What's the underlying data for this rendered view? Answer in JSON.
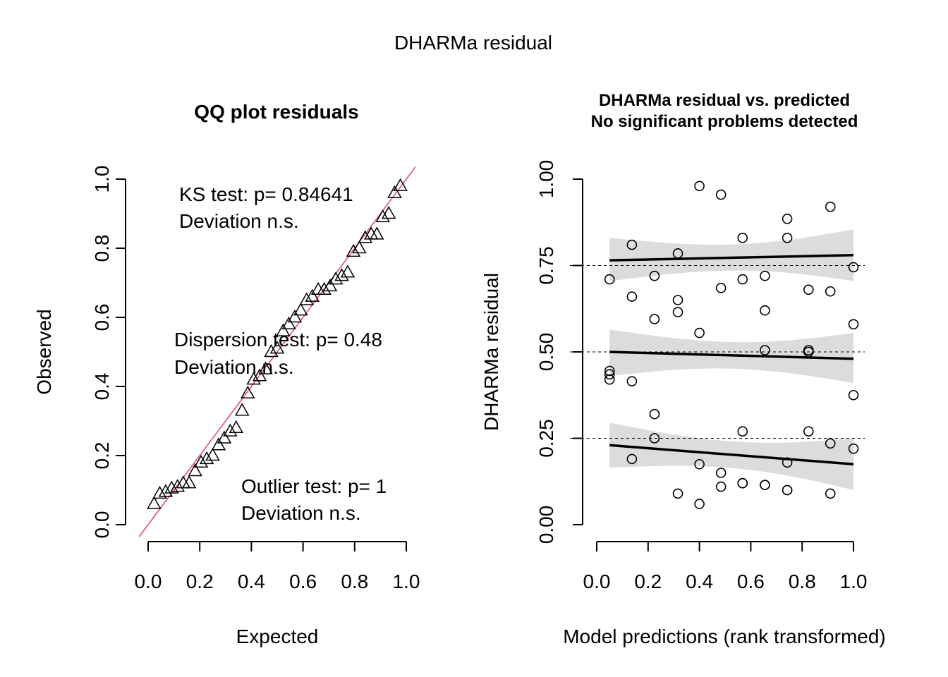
{
  "figure": {
    "title": "DHARMa residual"
  },
  "qq": {
    "title": "QQ plot residuals",
    "xlabel": "Expected",
    "ylabel": "Observed",
    "x_ticks": [
      "0.0",
      "0.2",
      "0.4",
      "0.6",
      "0.8",
      "1.0"
    ],
    "y_ticks": [
      "0.0",
      "0.2",
      "0.4",
      "0.6",
      "0.8",
      "1.0"
    ],
    "ks_line1": "KS test: p= 0.84641",
    "ks_line2": "Deviation  n.s.",
    "disp_line1": "Dispersion test: p= 0.48",
    "disp_line2": "Deviation  n.s.",
    "outlier_line1": "Outlier test: p= 1",
    "outlier_line2": "Deviation  n.s."
  },
  "resid": {
    "title_line1": "DHARMa residual vs. predicted",
    "title_line2": "No significant problems detected",
    "xlabel": "Model predictions (rank transformed)",
    "ylabel": "DHARMa residual",
    "x_ticks": [
      "0.0",
      "0.2",
      "0.4",
      "0.6",
      "0.8",
      "1.0"
    ],
    "y_ticks": [
      "0.00",
      "0.25",
      "0.50",
      "0.75",
      "1.00"
    ]
  },
  "chart_data": [
    {
      "type": "scatter",
      "title": "QQ plot residuals",
      "xlabel": "Expected",
      "ylabel": "Observed",
      "xlim": [
        0,
        1
      ],
      "ylim": [
        0,
        1
      ],
      "marker": "triangle",
      "reference_line": {
        "slope": 1,
        "intercept": 0,
        "color": "#DF536B"
      },
      "x": [
        0.023,
        0.045,
        0.068,
        0.091,
        0.114,
        0.136,
        0.159,
        0.182,
        0.205,
        0.227,
        0.25,
        0.273,
        0.295,
        0.318,
        0.341,
        0.364,
        0.386,
        0.409,
        0.432,
        0.455,
        0.477,
        0.5,
        0.523,
        0.545,
        0.568,
        0.591,
        0.614,
        0.636,
        0.659,
        0.682,
        0.705,
        0.727,
        0.75,
        0.773,
        0.795,
        0.818,
        0.841,
        0.864,
        0.886,
        0.909,
        0.932,
        0.955,
        0.977
      ],
      "y": [
        0.06,
        0.09,
        0.095,
        0.105,
        0.11,
        0.12,
        0.12,
        0.155,
        0.18,
        0.19,
        0.2,
        0.23,
        0.25,
        0.27,
        0.28,
        0.33,
        0.38,
        0.42,
        0.43,
        0.45,
        0.5,
        0.51,
        0.56,
        0.58,
        0.6,
        0.62,
        0.65,
        0.66,
        0.68,
        0.68,
        0.69,
        0.71,
        0.72,
        0.73,
        0.79,
        0.8,
        0.83,
        0.84,
        0.84,
        0.89,
        0.9,
        0.96,
        0.98
      ]
    },
    {
      "type": "scatter",
      "title": "DHARMa residual vs. predicted",
      "subtitle": "No significant problems detected",
      "xlabel": "Model predictions (rank transformed)",
      "ylabel": "DHARMa residual",
      "xlim": [
        0,
        1
      ],
      "ylim": [
        0,
        1
      ],
      "marker": "open-circle",
      "reference_lines_y": [
        0.25,
        0.5,
        0.75
      ],
      "x": [
        0.05,
        0.05,
        0.05,
        0.05,
        0.137,
        0.137,
        0.137,
        0.137,
        0.225,
        0.225,
        0.225,
        0.225,
        0.316,
        0.316,
        0.316,
        0.316,
        0.4,
        0.4,
        0.4,
        0.4,
        0.484,
        0.484,
        0.484,
        0.484,
        0.568,
        0.568,
        0.568,
        0.568,
        0.568,
        0.655,
        0.655,
        0.655,
        0.655,
        0.655,
        0.742,
        0.742,
        0.742,
        0.742,
        0.742,
        0.825,
        0.825,
        0.825,
        0.825,
        0.91,
        0.91,
        0.91,
        0.91,
        1.0,
        1.0,
        1.0,
        1.0
      ],
      "y": [
        0.71,
        0.445,
        0.435,
        0.42,
        0.81,
        0.66,
        0.415,
        0.19,
        0.72,
        0.595,
        0.32,
        0.25,
        0.785,
        0.65,
        0.615,
        0.09,
        0.98,
        0.555,
        0.175,
        0.06,
        0.955,
        0.685,
        0.15,
        0.11,
        0.83,
        0.71,
        0.27,
        0.12,
        0.12,
        0.72,
        0.62,
        0.505,
        0.115,
        0.115,
        0.885,
        0.83,
        0.18,
        0.1,
        0.1,
        0.68,
        0.505,
        0.5,
        0.27,
        0.92,
        0.675,
        0.235,
        0.09,
        0.745,
        0.58,
        0.375,
        0.22
      ],
      "quantile_fits": [
        {
          "quantile": 0.25,
          "x": [
            0.05,
            1.0
          ],
          "y": [
            0.23,
            0.175
          ],
          "band_lower": [
            0.165,
            0.1
          ],
          "band_upper": [
            0.295,
            0.25
          ]
        },
        {
          "quantile": 0.5,
          "x": [
            0.05,
            1.0
          ],
          "y": [
            0.5,
            0.48
          ],
          "band_lower": [
            0.43,
            0.41
          ],
          "band_upper": [
            0.565,
            0.555
          ]
        },
        {
          "quantile": 0.75,
          "x": [
            0.05,
            1.0
          ],
          "y": [
            0.765,
            0.78
          ],
          "band_lower": [
            0.705,
            0.705
          ],
          "band_upper": [
            0.83,
            0.855
          ]
        }
      ]
    }
  ]
}
